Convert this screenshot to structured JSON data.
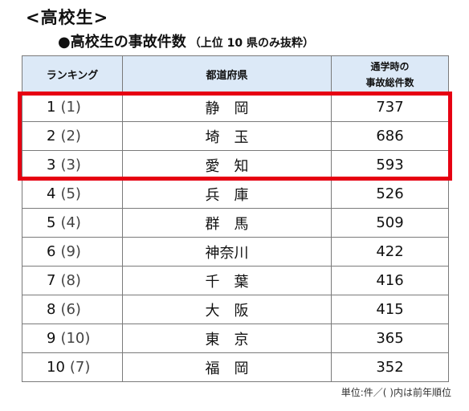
{
  "heading": "<高校生>",
  "subheading": {
    "main": "●高校生の事故件数",
    "note": "（上位 10 県のみ抜粋）"
  },
  "table": {
    "headers": {
      "rank": "ランキング",
      "prefecture": "都道府県",
      "count_line1": "通学時の",
      "count_line2": "事故総件数"
    },
    "rows": [
      {
        "rank": "1",
        "prev": "(1)",
        "prefecture": "静岡",
        "count": "737"
      },
      {
        "rank": "2",
        "prev": "(2)",
        "prefecture": "埼玉",
        "count": "686"
      },
      {
        "rank": "3",
        "prev": "(3)",
        "prefecture": "愛知",
        "count": "593"
      },
      {
        "rank": "4",
        "prev": "(5)",
        "prefecture": "兵庫",
        "count": "526"
      },
      {
        "rank": "5",
        "prev": "(4)",
        "prefecture": "群馬",
        "count": "509"
      },
      {
        "rank": "6",
        "prev": "(9)",
        "prefecture": "神奈川",
        "count": "422"
      },
      {
        "rank": "7",
        "prev": "(8)",
        "prefecture": "千葉",
        "count": "416"
      },
      {
        "rank": "8",
        "prev": "(6)",
        "prefecture": "大阪",
        "count": "415"
      },
      {
        "rank": "9",
        "prev": "(10)",
        "prefecture": "東京",
        "count": "365"
      },
      {
        "rank": "10",
        "prev": "(7)",
        "prefecture": "福岡",
        "count": "352"
      }
    ]
  },
  "footnote": "単位:件／( )内は前年順位",
  "colors": {
    "highlight": "#e60012",
    "header_bg": "#dce9f7"
  }
}
